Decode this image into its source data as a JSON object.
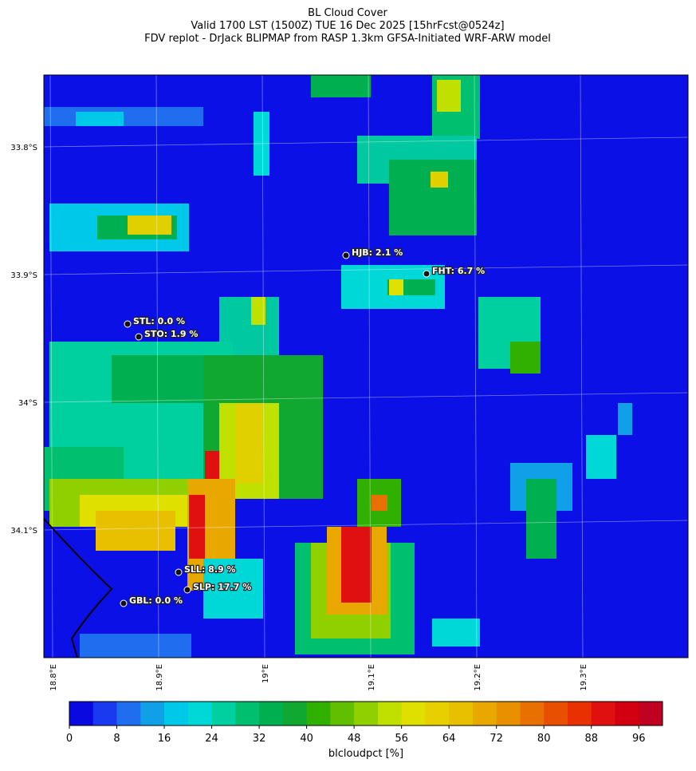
{
  "map": {
    "title": [
      "BL Cloud Cover",
      "Valid 1700 LST (1500Z) TUE 16 Dec 2025 [15hrFcst@0524z]",
      "FDV replot - DrJack BLIPMAP from RASP 1.3km GFSA-Initiated WRF-ARW model"
    ],
    "lat_labels": [
      "33.8°S",
      "33.9°S",
      "34°S",
      "34.1°S"
    ],
    "lon_labels": [
      "18.8°E",
      "18.9°E",
      "19°E",
      "19.1°E",
      "19.2°E",
      "19.3°E"
    ],
    "stations": [
      {
        "label": "HJB: 2.1 %"
      },
      {
        "label": "FHT: 6.7 %"
      },
      {
        "label": "STL: 0.0 %"
      },
      {
        "label": "STO: 1.9 %"
      },
      {
        "label": "SLL: 8.9 %"
      },
      {
        "label": "SLP: 17.7 %"
      },
      {
        "label": "GBL: 0.0 %"
      }
    ],
    "colorbar": {
      "label": "blcloudpct [%]",
      "lim": [
        0,
        100
      ],
      "ticks": [
        0,
        8,
        16,
        24,
        32,
        40,
        48,
        56,
        64,
        72,
        80,
        88,
        96
      ],
      "colors": [
        "#0a0ae0",
        "#1a3af0",
        "#1f6ef0",
        "#10a0e8",
        "#00c8e8",
        "#00d8d8",
        "#00d0a0",
        "#00c070",
        "#00b050",
        "#10a830",
        "#30b000",
        "#60c000",
        "#90d000",
        "#c0e000",
        "#e0e000",
        "#e8d000",
        "#e8c000",
        "#e8a800",
        "#e89000",
        "#e87000",
        "#e85000",
        "#e83000",
        "#e01010",
        "#d00010",
        "#c00020"
      ]
    }
  }
}
